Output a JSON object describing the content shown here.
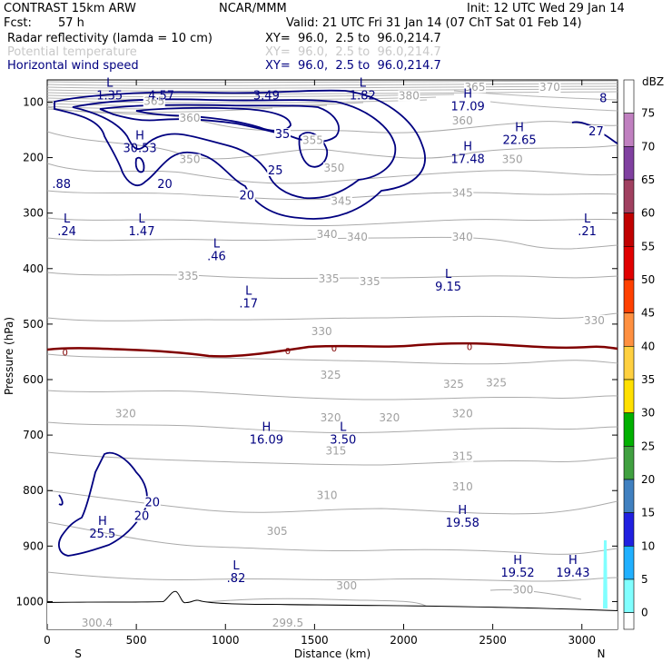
{
  "header": {
    "model": "CONTRAST 15km ARW",
    "org": "NCAR/MMM",
    "init": "Init: 12 UTC Wed 29 Jan 14",
    "fcst_label": "Fcst:",
    "fcst_value": "57 h",
    "valid": "Valid: 21 UTC Fri 31 Jan 14 (07 ChT Sat 01 Feb 14)",
    "fields": [
      {
        "name": "Radar reflectivity (lamda = 10 cm)",
        "xy": "XY=  96.0,  2.5 to  96.0,214.7",
        "color": "#000000"
      },
      {
        "name": "Potential temperature",
        "xy": "XY=  96.0,  2.5 to  96.0,214.7",
        "color": "#c8c8c8"
      },
      {
        "name": "Horizontal wind speed",
        "xy": "XY=  96.0,  2.5 to  96.0,214.7",
        "color": "#000080"
      }
    ]
  },
  "chart_data": {
    "type": "contour-cross-section",
    "xlabel": "Distance (km)",
    "ylabel": "Pressure (hPa)",
    "xlim": [
      0,
      3200
    ],
    "ylim": [
      1050,
      60
    ],
    "x_ticks": [
      0,
      500,
      1000,
      1500,
      2000,
      2500,
      3000
    ],
    "y_ticks": [
      100,
      200,
      300,
      400,
      500,
      600,
      700,
      800,
      900,
      1000
    ],
    "end_labels": {
      "left": "S",
      "right": "N"
    },
    "colorbar": {
      "unit": "dBZ",
      "levels": [
        "75",
        "70",
        "65",
        "60",
        "55",
        "50",
        "45",
        "40",
        "35",
        "30",
        "25",
        "20",
        "15",
        "10",
        "5",
        "0"
      ],
      "colors": [
        "#ffffff",
        "#c080c0",
        "#8040a0",
        "#a04060",
        "#c00000",
        "#e00000",
        "#ff4000",
        "#ff9040",
        "#ffd040",
        "#ffe000",
        "#00b000",
        "#40a040",
        "#4080c0",
        "#2020e0",
        "#20b0ff",
        "#80ffff"
      ]
    },
    "theta_labels": [
      {
        "t": "380",
        "x": 2030,
        "p": 95
      },
      {
        "t": "365",
        "x": 2400,
        "p": 80
      },
      {
        "t": "370",
        "x": 2820,
        "p": 80
      },
      {
        "t": "365",
        "x": 600,
        "p": 105
      },
      {
        "t": "360",
        "x": 800,
        "p": 135
      },
      {
        "t": "360",
        "x": 2330,
        "p": 140
      },
      {
        "t": "355",
        "x": 1490,
        "p": 175
      },
      {
        "t": "350",
        "x": 800,
        "p": 210
      },
      {
        "t": "350",
        "x": 1610,
        "p": 225
      },
      {
        "t": "350",
        "x": 2610,
        "p": 210
      },
      {
        "t": "345",
        "x": 1650,
        "p": 285
      },
      {
        "t": "345",
        "x": 2330,
        "p": 270
      },
      {
        "t": "340",
        "x": 1570,
        "p": 345
      },
      {
        "t": "340",
        "x": 1740,
        "p": 350
      },
      {
        "t": "340",
        "x": 2330,
        "p": 350
      },
      {
        "t": "335",
        "x": 790,
        "p": 420
      },
      {
        "t": "335",
        "x": 1580,
        "p": 425
      },
      {
        "t": "335",
        "x": 1810,
        "p": 430
      },
      {
        "t": "330",
        "x": 1540,
        "p": 520
      },
      {
        "t": "330",
        "x": 3070,
        "p": 500
      },
      {
        "t": "325",
        "x": 1590,
        "p": 598
      },
      {
        "t": "325",
        "x": 2280,
        "p": 615
      },
      {
        "t": "325",
        "x": 2520,
        "p": 612
      },
      {
        "t": "320",
        "x": 440,
        "p": 668
      },
      {
        "t": "320",
        "x": 1590,
        "p": 675
      },
      {
        "t": "320",
        "x": 1920,
        "p": 675
      },
      {
        "t": "320",
        "x": 2330,
        "p": 668
      },
      {
        "t": "315",
        "x": 1620,
        "p": 735
      },
      {
        "t": "315",
        "x": 2330,
        "p": 745
      },
      {
        "t": "310",
        "x": 1570,
        "p": 815
      },
      {
        "t": "310",
        "x": 2330,
        "p": 800
      },
      {
        "t": "305",
        "x": 1290,
        "p": 880
      },
      {
        "t": "300",
        "x": 1680,
        "p": 978
      },
      {
        "t": "300",
        "x": 2670,
        "p": 985
      },
      {
        "t": "300.4",
        "x": 280,
        "p": 1045
      },
      {
        "t": "299.5",
        "x": 1350,
        "p": 1045
      }
    ],
    "zero_labels": [
      {
        "t": "0",
        "x": 100,
        "p": 550
      },
      {
        "t": "0",
        "x": 1350,
        "p": 548
      },
      {
        "t": "0",
        "x": 1610,
        "p": 543
      },
      {
        "t": "0",
        "x": 2370,
        "p": 540
      }
    ],
    "wind_contour_labels": [
      {
        "t": "35",
        "x": 1320,
        "p": 165
      },
      {
        "t": "25",
        "x": 1280,
        "p": 230
      },
      {
        "t": "20",
        "x": 660,
        "p": 255
      },
      {
        "t": "20",
        "x": 1120,
        "p": 275
      },
      {
        "t": "20",
        "x": 590,
        "p": 828
      },
      {
        "t": "20",
        "x": 530,
        "p": 853
      },
      {
        "t": "27",
        "x": 3080,
        "p": 160
      }
    ],
    "extrema": [
      {
        "type": "L",
        "value": "1.35",
        "x": 350,
        "p": 95
      },
      {
        "type": "",
        "value": "4.57",
        "x": 640,
        "p": 95
      },
      {
        "type": "",
        "value": "3.49",
        "x": 1230,
        "p": 95
      },
      {
        "type": "L",
        "value": "1.82",
        "x": 1770,
        "p": 95
      },
      {
        "type": "H",
        "value": "17.09",
        "x": 2360,
        "p": 115
      },
      {
        "type": "H",
        "value": "30.53",
        "x": 520,
        "p": 190
      },
      {
        "type": "H",
        "value": "22.65",
        "x": 2650,
        "p": 175
      },
      {
        "type": "H",
        "value": "17.48",
        "x": 2360,
        "p": 210
      },
      {
        "type": "",
        "value": ".88",
        "x": 80,
        "p": 255
      },
      {
        "type": "L",
        "value": ".24",
        "x": 110,
        "p": 340
      },
      {
        "type": "L",
        "value": "1.47",
        "x": 530,
        "p": 340
      },
      {
        "type": "L",
        "value": ".46",
        "x": 950,
        "p": 385
      },
      {
        "type": "L",
        "value": ".21",
        "x": 3030,
        "p": 340
      },
      {
        "type": "L",
        "value": ".17",
        "x": 1130,
        "p": 470
      },
      {
        "type": "L",
        "value": "9.15",
        "x": 2250,
        "p": 440
      },
      {
        "type": "H",
        "value": "16.09",
        "x": 1230,
        "p": 715
      },
      {
        "type": "L",
        "value": "3.50",
        "x": 1660,
        "p": 715
      },
      {
        "type": "H",
        "value": "25.5",
        "x": 310,
        "p": 885
      },
      {
        "type": "H",
        "value": "19.58",
        "x": 2330,
        "p": 865
      },
      {
        "type": "L",
        "value": ".82",
        "x": 1060,
        "p": 965
      },
      {
        "type": "H",
        "value": "19.52",
        "x": 2640,
        "p": 955
      },
      {
        "type": "H",
        "value": "19.43",
        "x": 2950,
        "p": 955
      },
      {
        "type": "",
        "value": "8",
        "x": 3120,
        "p": 100
      }
    ]
  }
}
